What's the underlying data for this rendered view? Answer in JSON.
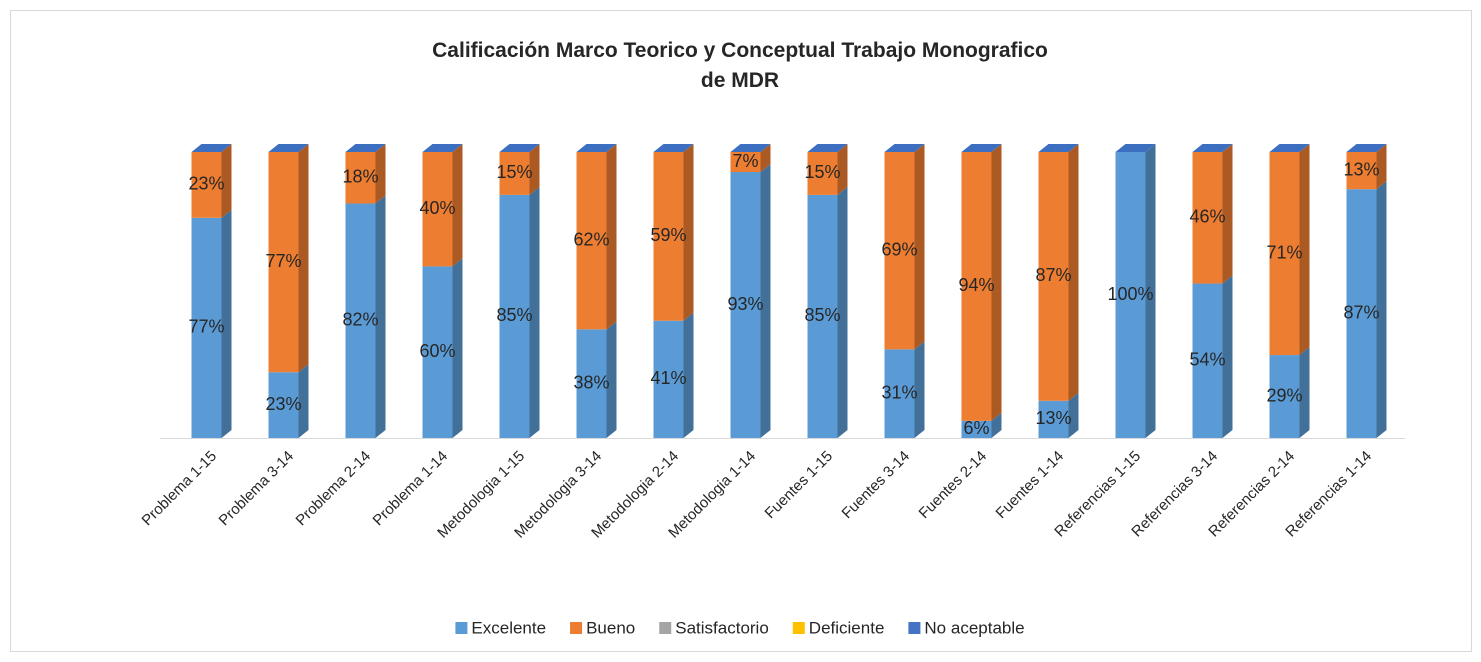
{
  "chart_data": {
    "type": "bar",
    "stacked": true,
    "title": "Calificación Marco Teorico y Conceptual Trabajo Monografico de MDR",
    "categories": [
      "Problema 1-15",
      "Problema 3-14",
      "Problema 2-14",
      "Problema 1-14",
      "Metodologia 1-15",
      "Metodologia 3-14",
      "Metodologia 2-14",
      "Metodologia 1-14",
      "Fuentes 1-15",
      "Fuentes 3-14",
      "Fuentes 2-14",
      "Fuentes 1-14",
      "Referencias 1-15",
      "Referencias 3-14",
      "Referencias 2-14",
      "Referencias 1-14"
    ],
    "series": [
      {
        "name": "Excelente",
        "color": "#5b9bd5",
        "values": [
          77,
          23,
          82,
          60,
          85,
          38,
          41,
          93,
          85,
          31,
          6,
          13,
          100,
          54,
          29,
          87
        ],
        "value_labels": [
          "77%",
          "23%",
          "82%",
          "60%",
          "85%",
          "38%",
          "41%",
          "93%",
          "85%",
          "31%",
          "6%",
          "13%",
          "100%",
          "54%",
          "29%",
          "87%"
        ]
      },
      {
        "name": "Bueno",
        "color": "#ed7d31",
        "values": [
          23,
          77,
          18,
          40,
          15,
          62,
          59,
          7,
          15,
          69,
          94,
          87,
          0,
          46,
          71,
          13
        ],
        "value_labels": [
          "23%",
          "77%",
          "18%",
          "40%",
          "15%",
          "62%",
          "59%",
          "7%",
          "15%",
          "69%",
          "94%",
          "87%",
          null,
          "46%",
          "71%",
          "13%"
        ]
      },
      {
        "name": "Satisfactorio",
        "color": "#a5a5a5",
        "values": [
          0,
          0,
          0,
          0,
          0,
          0,
          0,
          0,
          0,
          0,
          0,
          0,
          0,
          0,
          0,
          0
        ]
      },
      {
        "name": "Deficiente",
        "color": "#ffc000",
        "values": [
          0,
          0,
          0,
          0,
          0,
          0,
          0,
          0,
          0,
          0,
          0,
          0,
          0,
          0,
          0,
          0
        ]
      },
      {
        "name": "No aceptable",
        "color": "#4472c4",
        "values": [
          0,
          0,
          0,
          0,
          0,
          0,
          0,
          0,
          0,
          0,
          0,
          0,
          0,
          0,
          0,
          0
        ]
      }
    ],
    "legend": "bottom"
  }
}
